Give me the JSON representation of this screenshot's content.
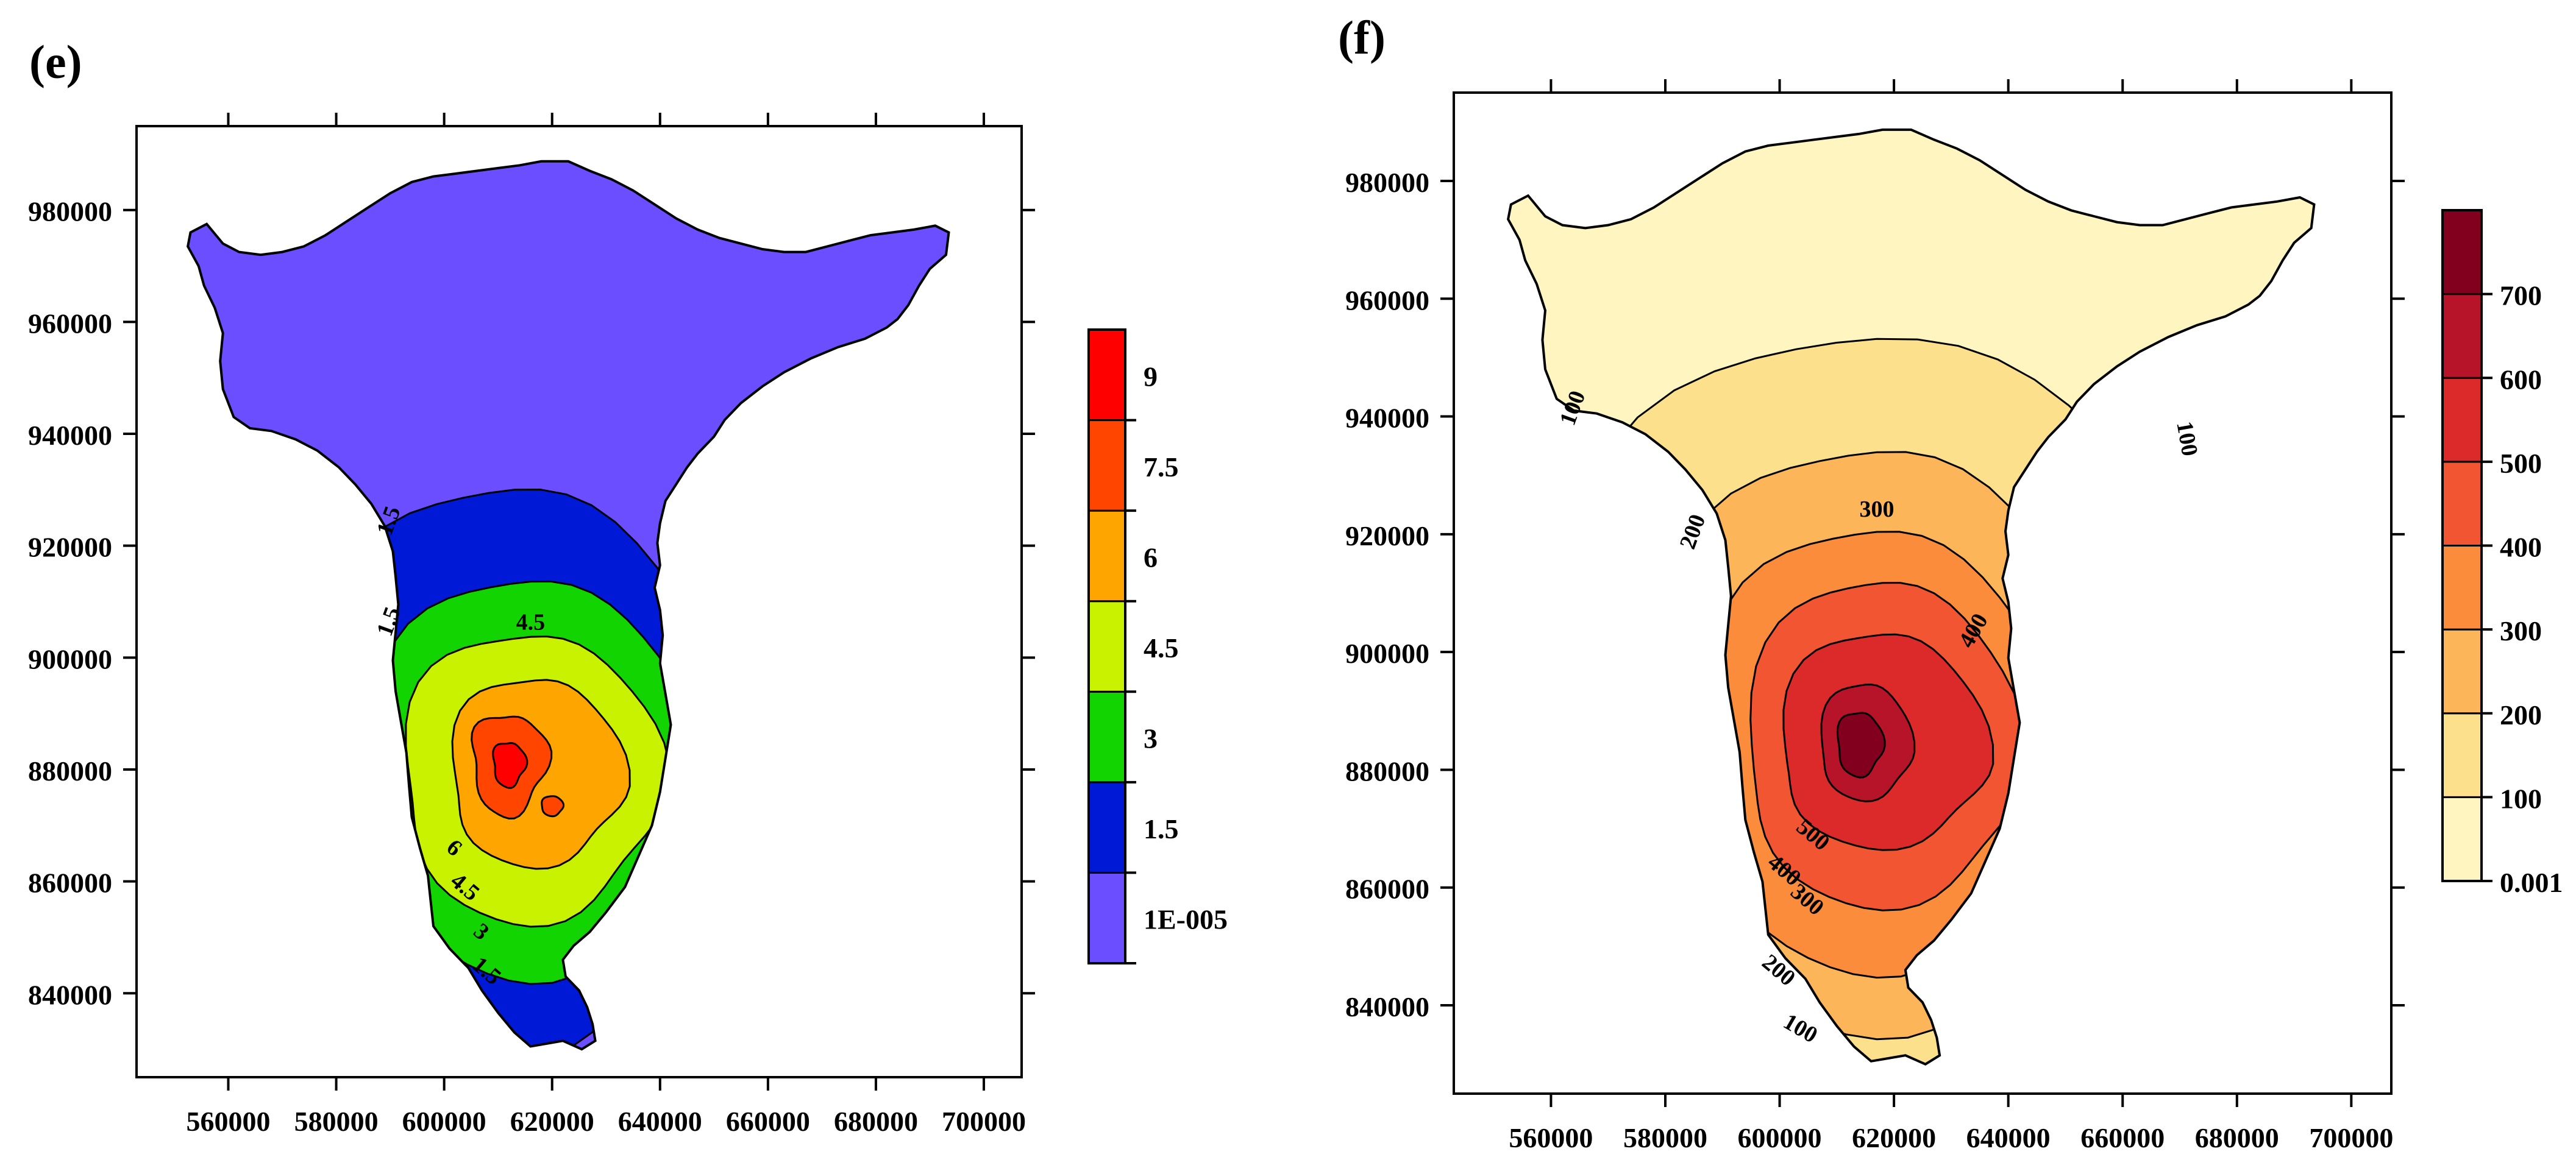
{
  "chart_data": [
    {
      "id": "panel-e",
      "type": "heatmap",
      "panel_label": "(e)",
      "x_ticks": [
        560000,
        580000,
        600000,
        620000,
        640000,
        660000,
        680000,
        700000
      ],
      "y_ticks": [
        840000,
        860000,
        880000,
        900000,
        920000,
        940000,
        960000,
        980000
      ],
      "xlim": [
        543000,
        707000
      ],
      "ylim": [
        825000,
        995000
      ],
      "legend": {
        "position": "right",
        "levels": [
          1e-05,
          1.5,
          3,
          4.5,
          6,
          7.5,
          9,
          10.5
        ],
        "labels": [
          "1E-005",
          "1.5",
          "3",
          "4.5",
          "6",
          "7.5",
          "9"
        ],
        "colors": [
          "#6b4eff",
          "#0019d6",
          "#11d400",
          "#c8f200",
          "#ffa500",
          "#ff4500",
          "#ff0000"
        ]
      },
      "contour_labels": [
        "1.5",
        "1.5",
        "4.5",
        "6",
        "4.5",
        "3",
        "1.5"
      ]
    },
    {
      "id": "panel-f",
      "type": "heatmap",
      "panel_label": "(f)",
      "x_ticks": [
        560000,
        580000,
        600000,
        620000,
        640000,
        660000,
        680000,
        700000
      ],
      "y_ticks": [
        840000,
        860000,
        880000,
        900000,
        920000,
        940000,
        960000,
        980000
      ],
      "xlim": [
        543000,
        707000
      ],
      "ylim": [
        825000,
        995000
      ],
      "legend": {
        "position": "right",
        "levels": [
          0.001,
          100,
          200,
          300,
          400,
          500,
          600,
          700,
          800
        ],
        "labels": [
          "0.001",
          "100",
          "200",
          "300",
          "400",
          "500",
          "600",
          "700"
        ],
        "colors": [
          "#fff5c0",
          "#fde08c",
          "#fdb55a",
          "#fb8c3c",
          "#f25531",
          "#dc2a2a",
          "#b81429",
          "#82001e"
        ]
      },
      "contour_labels": [
        "100",
        "100",
        "200",
        "300",
        "400",
        "500",
        "400",
        "300",
        "200",
        "100"
      ]
    }
  ]
}
